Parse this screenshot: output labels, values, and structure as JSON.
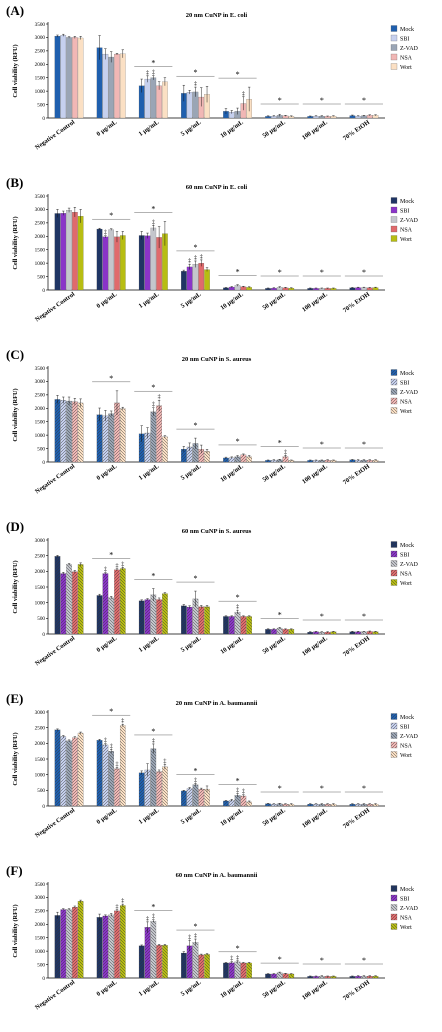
{
  "categories": [
    "Negative Control",
    "0 µg/mL",
    "1 µg/mL",
    "5 µg/mL",
    "10 µg/mL",
    "50 µg/mL",
    "100 µg/mL",
    "70% EtOH"
  ],
  "series_names": [
    "Mock",
    "SBI",
    "Z-VAD",
    "NSA",
    "Wort"
  ],
  "ylabel": "Cell viability (RFU)",
  "colors": {
    "blue": [
      "#1f5fae",
      "#c6d0ee",
      "#9aa5b5",
      "#f1b7b5",
      "#fbe0c4"
    ],
    "purple": [
      "#1f3564",
      "#8a34c8",
      "#c4c6cc",
      "#e06a6c",
      "#b7bd12"
    ]
  },
  "chart_data": [
    {
      "type": "bar",
      "panel": "(A)",
      "title": "20 nm CuNP in E. coli",
      "palette": "blue",
      "hatched": false,
      "ylim": [
        0,
        3500
      ],
      "yticks": [
        0,
        500,
        1000,
        1500,
        2000,
        2500,
        3000,
        3500
      ],
      "series": [
        {
          "name": "Mock",
          "values": [
            3050,
            2620,
            1200,
            920,
            250,
            60,
            60,
            90
          ],
          "errors": [
            40,
            450,
            250,
            300,
            100,
            20,
            15,
            20
          ]
        },
        {
          "name": "SBI",
          "values": [
            3080,
            2380,
            1450,
            960,
            220,
            70,
            70,
            70
          ],
          "errors": [
            40,
            200,
            120,
            70,
            60,
            20,
            15,
            15
          ]
        },
        {
          "name": "Z-VAD",
          "values": [
            3000,
            2270,
            1500,
            970,
            250,
            100,
            70,
            80
          ],
          "errors": [
            30,
            200,
            80,
            180,
            120,
            40,
            15,
            20
          ]
        },
        {
          "name": "NSA",
          "values": [
            3000,
            2380,
            1200,
            780,
            540,
            80,
            60,
            100
          ],
          "errors": [
            40,
            30,
            150,
            350,
            250,
            20,
            15,
            20
          ]
        },
        {
          "name": "Wort",
          "values": [
            2980,
            2390,
            1350,
            880,
            700,
            60,
            70,
            100
          ],
          "errors": [
            60,
            150,
            150,
            300,
            450,
            20,
            15,
            20
          ]
        }
      ],
      "significance": [
        "",
        "",
        "*",
        "*",
        "*",
        "*",
        "*",
        "*"
      ],
      "daggers": [
        [],
        [],
        [
          1,
          2
        ],
        [
          2
        ],
        [
          3
        ],
        [],
        [],
        []
      ]
    },
    {
      "type": "bar",
      "panel": "(B)",
      "title": "60 nm CuNP in E. coli",
      "palette": "purple",
      "hatched": false,
      "ylim": [
        0,
        3500
      ],
      "yticks": [
        0,
        500,
        1000,
        1500,
        2000,
        2500,
        3000,
        3500
      ],
      "series": [
        {
          "name": "Mock",
          "values": [
            2850,
            2270,
            2030,
            700,
            80,
            60,
            60,
            80
          ],
          "errors": [
            150,
            30,
            150,
            40,
            15,
            15,
            15,
            15
          ]
        },
        {
          "name": "SBI",
          "values": [
            2860,
            1980,
            2020,
            860,
            110,
            70,
            60,
            90
          ],
          "errors": [
            80,
            40,
            100,
            100,
            20,
            15,
            15,
            15
          ]
        },
        {
          "name": "Z-VAD",
          "values": [
            2970,
            2250,
            2310,
            960,
            170,
            100,
            60,
            90
          ],
          "errors": [
            80,
            30,
            100,
            120,
            30,
            25,
            15,
            15
          ]
        },
        {
          "name": "NSA",
          "values": [
            2900,
            1980,
            1960,
            1000,
            120,
            80,
            60,
            80
          ],
          "errors": [
            180,
            200,
            400,
            120,
            20,
            20,
            15,
            15
          ]
        },
        {
          "name": "Wort",
          "values": [
            2750,
            2030,
            2100,
            760,
            100,
            70,
            60,
            90
          ],
          "errors": [
            250,
            150,
            450,
            70,
            20,
            15,
            15,
            15
          ]
        }
      ],
      "significance": [
        "",
        "*",
        "*",
        "*",
        "*",
        "*",
        "*",
        "*"
      ],
      "daggers": [
        [],
        [
          1
        ],
        [
          2
        ],
        [
          1,
          2,
          3
        ],
        [],
        [],
        [],
        []
      ]
    },
    {
      "type": "bar",
      "panel": "(C)",
      "title": "20 nm CuNP in S. aureus",
      "palette": "blue",
      "hatched": true,
      "ylim": [
        0,
        3500
      ],
      "yticks": [
        0,
        500,
        1000,
        1500,
        2000,
        2500,
        3000,
        3500
      ],
      "series": [
        {
          "name": "Mock",
          "values": [
            2330,
            1760,
            1050,
            480,
            150,
            60,
            60,
            80
          ],
          "errors": [
            150,
            250,
            300,
            100,
            30,
            15,
            15,
            15
          ]
        },
        {
          "name": "SBI",
          "values": [
            2300,
            1720,
            1080,
            560,
            160,
            70,
            60,
            70
          ],
          "errors": [
            120,
            200,
            200,
            150,
            30,
            15,
            15,
            15
          ]
        },
        {
          "name": "Z-VAD",
          "values": [
            2270,
            1800,
            1870,
            690,
            200,
            80,
            60,
            70
          ],
          "errors": [
            150,
            100,
            150,
            200,
            40,
            20,
            15,
            15
          ]
        },
        {
          "name": "NSA",
          "values": [
            2250,
            2200,
            2100,
            480,
            270,
            200,
            70,
            70
          ],
          "errors": [
            120,
            450,
            200,
            150,
            30,
            50,
            15,
            15
          ]
        },
        {
          "name": "Wort",
          "values": [
            2200,
            1990,
            940,
            400,
            200,
            60,
            60,
            70
          ],
          "errors": [
            150,
            50,
            40,
            70,
            40,
            15,
            15,
            15
          ]
        }
      ],
      "significance": [
        "",
        "*",
        "*",
        "*",
        "*",
        "*",
        "*",
        "*"
      ],
      "daggers": [
        [],
        [],
        [
          2,
          3
        ],
        [],
        [],
        [
          3
        ],
        [],
        []
      ]
    },
    {
      "type": "bar",
      "panel": "(D)",
      "title": "60 nm CuNP in S. aureus",
      "palette": "purple",
      "hatched": true,
      "ylim": [
        0,
        3000
      ],
      "yticks": [
        0,
        500,
        1000,
        1500,
        2000,
        2500,
        3000
      ],
      "series": [
        {
          "name": "Mock",
          "values": [
            2480,
            1230,
            1060,
            900,
            560,
            150,
            60,
            70
          ],
          "errors": [
            30,
            40,
            30,
            40,
            20,
            15,
            15,
            15
          ]
        },
        {
          "name": "SBI",
          "values": [
            1930,
            1930,
            1100,
            860,
            560,
            150,
            70,
            70
          ],
          "errors": [
            40,
            30,
            30,
            40,
            20,
            15,
            15,
            15
          ]
        },
        {
          "name": "Z-VAD",
          "values": [
            2220,
            1160,
            1250,
            1120,
            700,
            190,
            60,
            70
          ],
          "errors": [
            30,
            40,
            200,
            250,
            60,
            20,
            15,
            15
          ]
        },
        {
          "name": "NSA",
          "values": [
            1990,
            2050,
            1100,
            870,
            560,
            150,
            60,
            80
          ],
          "errors": [
            40,
            30,
            50,
            40,
            20,
            15,
            15,
            15
          ]
        },
        {
          "name": "Wort",
          "values": [
            2220,
            2090,
            1290,
            870,
            560,
            150,
            70,
            70
          ],
          "errors": [
            50,
            40,
            30,
            40,
            20,
            15,
            15,
            15
          ]
        }
      ],
      "significance": [
        "",
        "*",
        "*",
        "*",
        "*",
        "*",
        "*",
        "*"
      ],
      "daggers": [
        [],
        [
          1,
          3,
          4
        ],
        [],
        [],
        [
          2
        ],
        [],
        [],
        []
      ]
    },
    {
      "type": "bar",
      "panel": "(E)",
      "title": "20 nm CuNP in A. baumannii",
      "palette": "blue",
      "hatched": true,
      "ylim": [
        0,
        3000
      ],
      "yticks": [
        0,
        500,
        1000,
        1500,
        2000,
        2500,
        3000
      ],
      "series": [
        {
          "name": "Mock",
          "values": [
            2430,
            2100,
            1060,
            480,
            160,
            70,
            60,
            60
          ],
          "errors": [
            30,
            30,
            60,
            20,
            20,
            15,
            15,
            15
          ]
        },
        {
          "name": "SBI",
          "values": [
            2220,
            1950,
            1150,
            560,
            180,
            60,
            60,
            60
          ],
          "errors": [
            30,
            40,
            200,
            30,
            30,
            15,
            15,
            15
          ]
        },
        {
          "name": "Z-VAD",
          "values": [
            2080,
            1750,
            1830,
            680,
            340,
            70,
            60,
            60
          ],
          "errors": [
            30,
            60,
            150,
            40,
            60,
            15,
            15,
            15
          ]
        },
        {
          "name": "NSA",
          "values": [
            2180,
            1190,
            1100,
            540,
            320,
            60,
            60,
            60
          ],
          "errors": [
            30,
            40,
            50,
            30,
            40,
            15,
            15,
            15
          ]
        },
        {
          "name": "Wort",
          "values": [
            2330,
            2570,
            1250,
            540,
            130,
            60,
            60,
            60
          ],
          "errors": [
            30,
            40,
            80,
            100,
            30,
            15,
            15,
            15
          ]
        }
      ],
      "significance": [
        "",
        "*",
        "*",
        "*",
        "*",
        "*",
        "*",
        "*"
      ],
      "daggers": [
        [],
        [
          1,
          2,
          3,
          4
        ],
        [
          2,
          4
        ],
        [
          2
        ],
        [
          2,
          3
        ],
        [],
        [],
        []
      ]
    },
    {
      "type": "bar",
      "panel": "(F)",
      "title": "60 nm CuNP in A. baumannii",
      "palette": "purple",
      "hatched": true,
      "ylim": [
        0,
        3500
      ],
      "yticks": [
        0,
        500,
        1000,
        1500,
        2000,
        2500,
        3000,
        3500
      ],
      "series": [
        {
          "name": "Mock",
          "values": [
            2330,
            2260,
            1200,
            930,
            560,
            150,
            60,
            60
          ],
          "errors": [
            120,
            120,
            30,
            50,
            20,
            15,
            15,
            15
          ]
        },
        {
          "name": "SBI",
          "values": [
            2550,
            2310,
            1890,
            1200,
            570,
            150,
            60,
            70
          ],
          "errors": [
            30,
            40,
            200,
            200,
            40,
            15,
            15,
            15
          ]
        },
        {
          "name": "Z-VAD",
          "values": [
            2550,
            2350,
            2120,
            1330,
            600,
            200,
            70,
            70
          ],
          "errors": [
            30,
            50,
            50,
            120,
            40,
            20,
            15,
            15
          ]
        },
        {
          "name": "NSA",
          "values": [
            2640,
            2500,
            1220,
            860,
            560,
            160,
            60,
            70
          ],
          "errors": [
            40,
            40,
            30,
            30,
            20,
            15,
            15,
            15
          ]
        },
        {
          "name": "Wort",
          "values": [
            2860,
            2700,
            1220,
            880,
            560,
            150,
            60,
            70
          ],
          "errors": [
            40,
            50,
            30,
            30,
            20,
            15,
            15,
            15
          ]
        }
      ],
      "significance": [
        "",
        "",
        "*",
        "*",
        "*",
        "*",
        "*",
        "*"
      ],
      "daggers": [
        [],
        [
          3,
          4
        ],
        [
          1,
          2
        ],
        [
          1,
          2
        ],
        [
          1,
          2
        ],
        [],
        [],
        []
      ]
    }
  ]
}
